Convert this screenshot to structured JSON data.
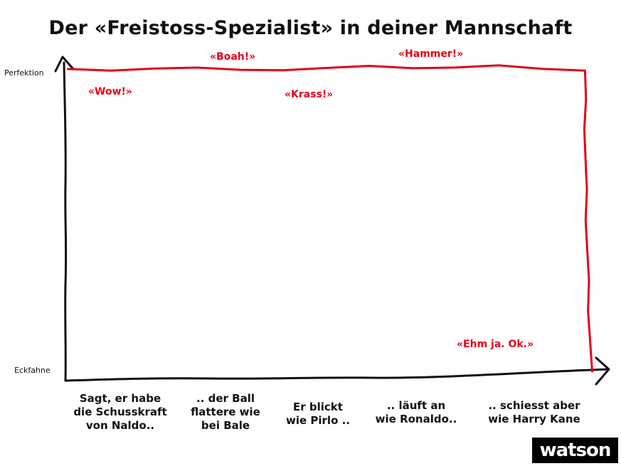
{
  "chart_data": {
    "type": "line",
    "title": "Der «Freistoss-Spezialist» in deiner Mannschaft",
    "y_top_label": "Perfektion",
    "y_bottom_label": "Eckfahne",
    "categories": [
      "Sagt, er habe\ndie Schusskraft\nvon Naldo..",
      ".. der Ball\nflattere wie\nbei Bale",
      "Er blickt\nwie Pirlo ..",
      ".. läuft an\nwie Ronaldo..",
      ".. schiesst aber\nwie Harry Kane"
    ],
    "series": [
      {
        "color": "#e3001b",
        "points": [
          [
            0.02,
            1.0
          ],
          [
            4.15,
            1.0
          ],
          [
            4.2,
            0.0
          ]
        ]
      }
    ],
    "annotations": [
      {
        "text": "«Wow!»",
        "color": "#e3001b"
      },
      {
        "text": "«Boah!»",
        "color": "#e3001b"
      },
      {
        "text": "«Krass!»",
        "color": "#e3001b"
      },
      {
        "text": "«Hammer!»",
        "color": "#e3001b"
      },
      {
        "text": "«Ehm ja. Ok.»",
        "color": "#e3001b"
      }
    ],
    "ylim": [
      0,
      1
    ]
  },
  "logo": {
    "text": "watson",
    "background": "#000000",
    "color": "#ffffff"
  }
}
